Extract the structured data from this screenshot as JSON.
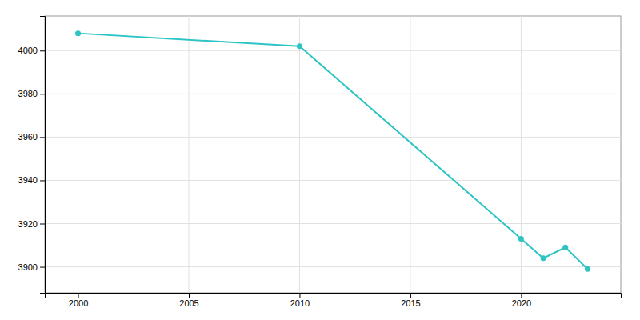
{
  "chart_data": {
    "type": "line",
    "x": [
      2000,
      2010,
      2020,
      2021,
      2022,
      2023
    ],
    "values": [
      4008,
      4002,
      3913,
      3904,
      3909,
      3899
    ],
    "color": "#2ec4c4",
    "marker": "circle",
    "xlim": [
      1998.5,
      2024.5
    ],
    "ylim": [
      3888,
      4016
    ],
    "xticks": [
      2000,
      2005,
      2010,
      2015,
      2020
    ],
    "yticks": [
      3900,
      3920,
      3940,
      3960,
      3980,
      4000
    ],
    "grid": true
  }
}
